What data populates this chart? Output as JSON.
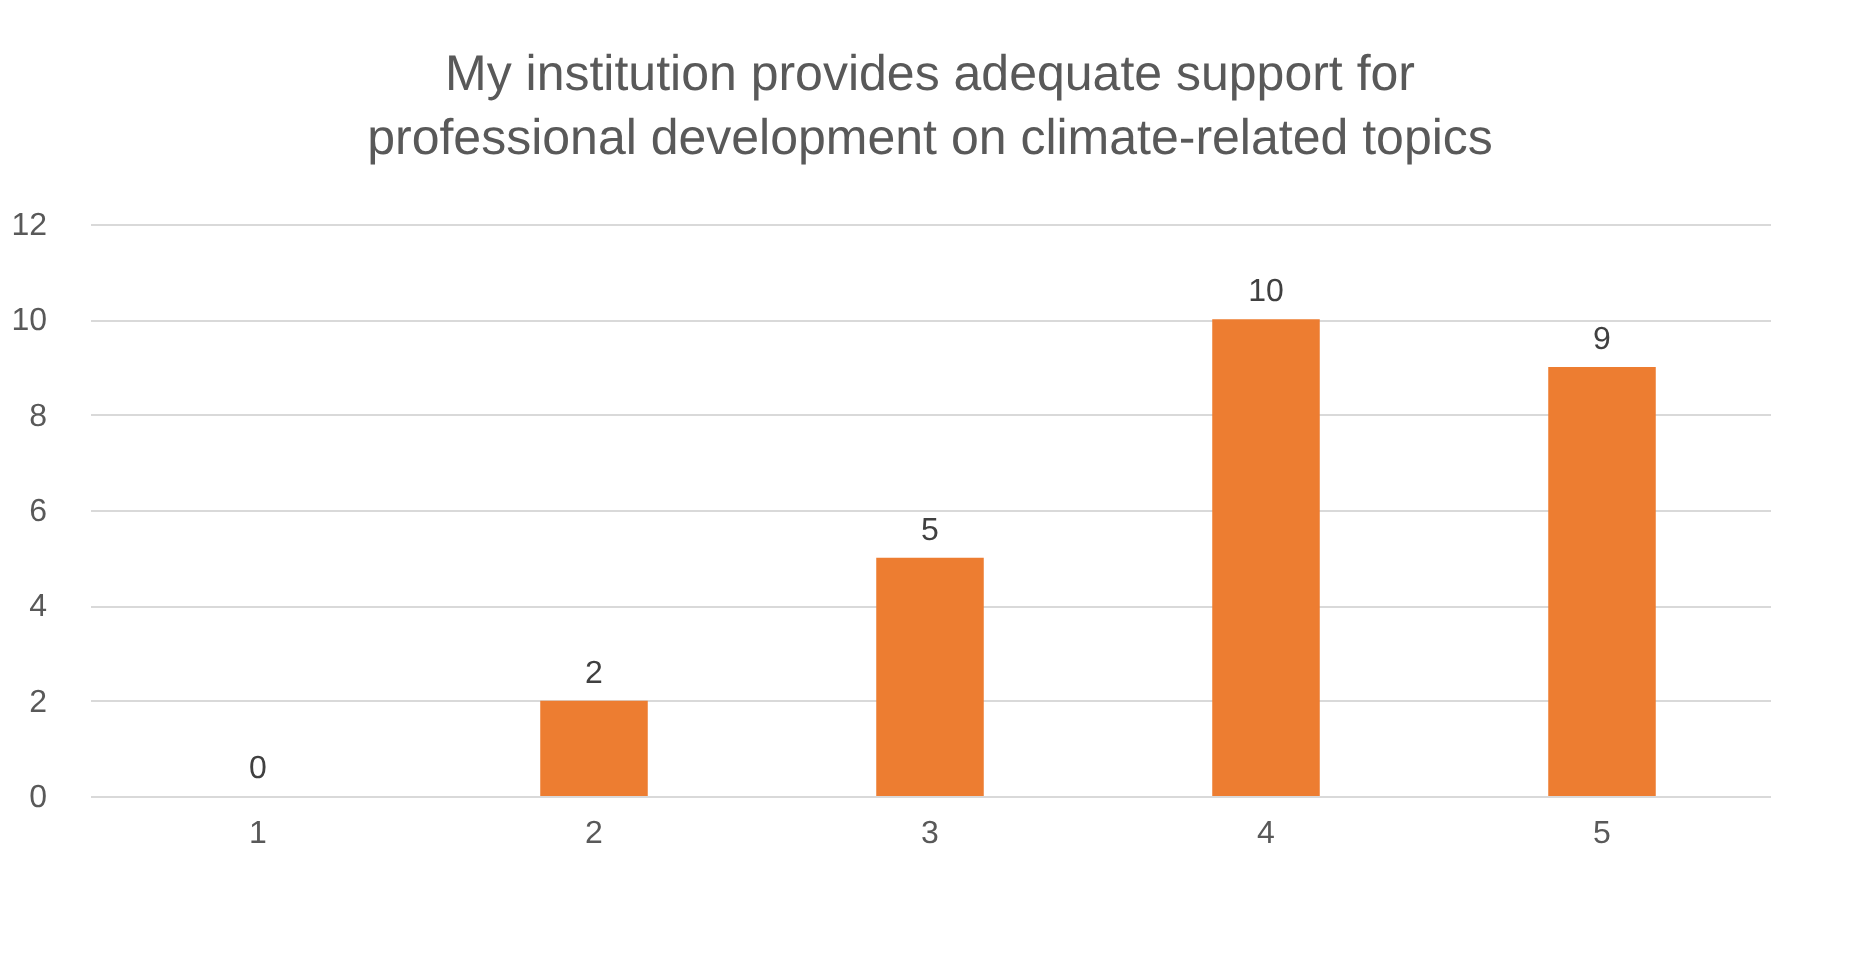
{
  "chart_data": {
    "type": "bar",
    "title": "My institution provides adequate support for\nprofessional development on climate-related topics",
    "categories": [
      "1",
      "2",
      "3",
      "4",
      "5"
    ],
    "values": [
      0,
      2,
      5,
      10,
      9
    ],
    "color": "#ed7d31",
    "ylim": [
      0,
      12
    ],
    "yticks": [
      0,
      2,
      4,
      6,
      8,
      10,
      12
    ],
    "grid": "y",
    "data_labels": true
  }
}
